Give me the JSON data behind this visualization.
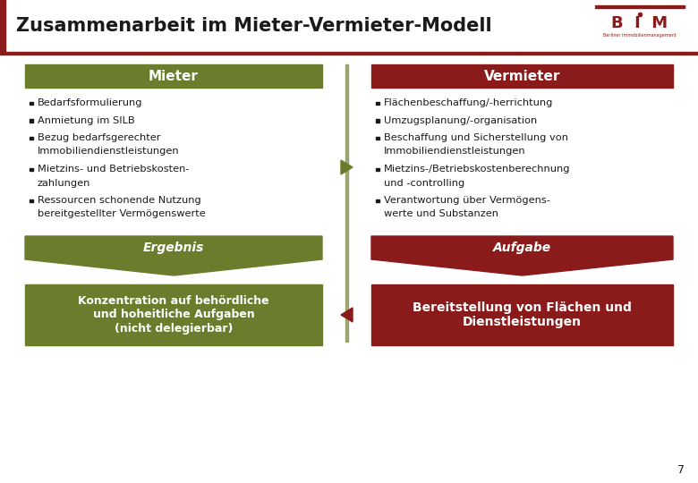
{
  "title": "Zusammenarbeit im Mieter-Vermieter-Modell",
  "bg_color": "#ffffff",
  "dark_red": "#8b1a1a",
  "olive_green": "#6b7c2d",
  "white": "#ffffff",
  "black": "#1a1a1a",
  "left_header_text": "Mieter",
  "right_header_text": "Vermieter",
  "left_bullets": [
    "Bedarfsformulierung",
    "Anmietung im SILB",
    "Bezug bedarfsgerechter\nImmobiliendienstleistungen",
    "Mietzins- und Betriebskosten-\nzahlungen",
    "Ressourcen schonende Nutzung\nbereitgestellter Vermögenswerte"
  ],
  "right_bullets": [
    "Flächenbeschaffung/-herrichtung",
    "Umzugsplanung/-organisation",
    "Beschaffung und Sicherstellung von\nImmobiliendienstleistungen",
    "Mietzins-/Betriebskostenberechnung\nund -controlling",
    "Verantwortung über Vermögens-\nwerte und Substanzen"
  ],
  "left_label": "Ergebnis",
  "right_label": "Aufgabe",
  "left_box_text": "Konzentration auf behördliche\nund hoheitliche Aufgaben\n(nicht delegierbar)",
  "right_box_text": "Bereitstellung von Flächen und\nDienstleistungen",
  "page_number": "7"
}
